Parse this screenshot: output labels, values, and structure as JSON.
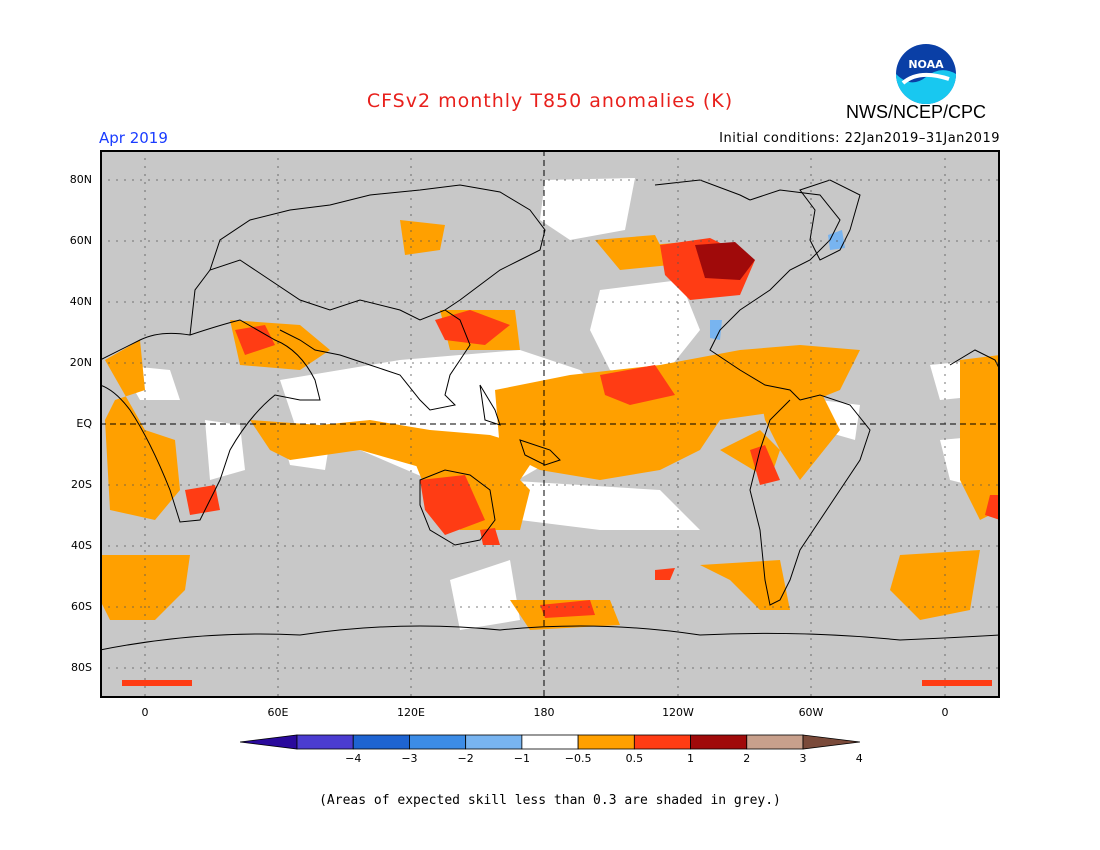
{
  "header": {
    "title": "CFSv2 monthly T850 anomalies (K)",
    "agency": "NWS/NCEP/CPC",
    "logo_text": "NOAA",
    "target_month": "Apr 2019",
    "initial_conditions": "Initial conditions: 22Jan2019–31Jan2019"
  },
  "map": {
    "lat_labels": [
      "80N",
      "60N",
      "40N",
      "20N",
      "EQ",
      "20S",
      "40S",
      "60S",
      "80S"
    ],
    "lon_labels": [
      "0",
      "60E",
      "120E",
      "180",
      "120W",
      "60W",
      "0"
    ],
    "background_color_low_skill": "#c8c8c8"
  },
  "colorbar": {
    "tick_labels": [
      "−4",
      "−3",
      "−2",
      "−1",
      "−0.5",
      "0.5",
      "1",
      "2",
      "3",
      "4"
    ],
    "colors": [
      "#2a0a9c",
      "#4b3cd0",
      "#1e64d2",
      "#3c8ce6",
      "#78b4f0",
      "#ffffff",
      "#ffa000",
      "#ff3c14",
      "#a00a0a",
      "#c8a08c",
      "#7a4a3a"
    ]
  },
  "footnote": "(Areas of expected skill less than 0.3 are shaded in grey.)"
}
